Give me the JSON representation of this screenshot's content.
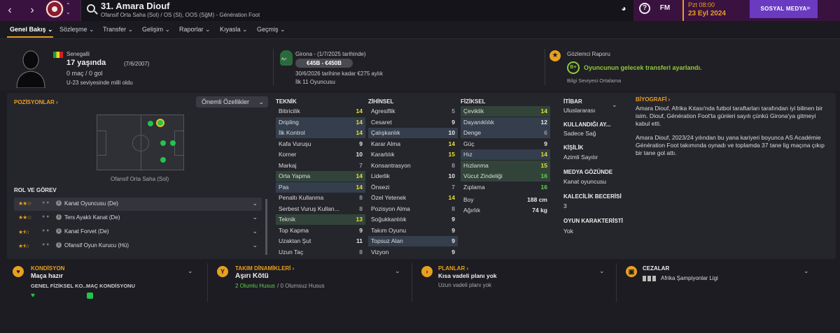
{
  "topbar": {
    "back": "‹",
    "forward": "›",
    "player_title": "31. Amara Diouf",
    "player_subtitle": "Ofansif Orta Saha (Sol) / OS (Sl), OOS (SğM) - Génération Foot",
    "fm_label": "FM",
    "date_day": "Pzt 08:00",
    "date": "23 Eyl 2024",
    "social_button": "SOSYAL MEDYA",
    "accent_color": "#e8a020",
    "social_color": "#6a3bc0"
  },
  "tabs": [
    {
      "label": "Genel Bakış ⌄"
    },
    {
      "label": "Sözleşme ⌄"
    },
    {
      "label": "Transfer ⌄"
    },
    {
      "label": "Gelişim ⌄"
    },
    {
      "label": "Raporlar ⌄"
    },
    {
      "label": "Kıyasla ⌄"
    },
    {
      "label": "Geçmiş ⌄"
    }
  ],
  "header": {
    "nationality": "Senegalli",
    "age": "17 yaşında",
    "dob": "(7/6/2007)",
    "caps": "0 maç / 0 gol",
    "intl_status": "U-23 seviyesinde milli oldu",
    "contract_club": "Girona - (1/7/2025 tarihinde)",
    "contract_badge": "Ayr",
    "value_range": "€45B - €450B",
    "wage": "30/6/2026 tarihine kadar €275 aylık",
    "squad_status": "İlk 11 Oyuncusu",
    "scout_title": "Gözlemci Raporu",
    "scout_grade": "B+",
    "scout_note": "Oyuncunun gelecek transferi ayarlandı.",
    "scout_level": "Bilgi Seviyesi Ortalama"
  },
  "positions": {
    "title": "POZİSYONLAR ›",
    "sort_label": "Önemli Özellikler",
    "pitch_caption": "Ofansif Orta Saha (Sol)"
  },
  "roles": {
    "title": "ROL VE GÖREV",
    "items": [
      {
        "label": "Kanat Oyuncusu (De)",
        "stars": "★★☆"
      },
      {
        "label": "Ters Ayaklı Kanat (De)",
        "stars": "★★☆"
      },
      {
        "label": "Kanat Forvet (De)",
        "stars": "★⯨☆"
      },
      {
        "label": "Ofansif Oyun Kurucu (Hü)",
        "stars": "★⯨☆"
      }
    ]
  },
  "technical": {
    "title": "TEKNİK",
    "items": [
      {
        "name": "Bitiricilik",
        "value": "14"
      },
      {
        "name": "Dripling",
        "value": "14"
      },
      {
        "name": "İlk Kontrol",
        "value": "14"
      },
      {
        "name": "Kafa Vuruşu",
        "value": "9"
      },
      {
        "name": "Korner",
        "value": "10"
      },
      {
        "name": "Markaj",
        "value": "7"
      },
      {
        "name": "Orta Yapma",
        "value": "14"
      },
      {
        "name": "Pas",
        "value": "14"
      },
      {
        "name": "Penaltı Kullanma",
        "value": "8"
      },
      {
        "name": "Serbest Vuruş Kullan...",
        "value": "8"
      },
      {
        "name": "Teknik",
        "value": "13"
      },
      {
        "name": "Top Kapma",
        "value": "9"
      },
      {
        "name": "Uzaktan Şut",
        "value": "11"
      },
      {
        "name": "Uzun Taç",
        "value": "8"
      }
    ]
  },
  "mental": {
    "title": "ZİHİNSEL",
    "items": [
      {
        "name": "Agresiflik",
        "value": "5"
      },
      {
        "name": "Cesaret",
        "value": "9"
      },
      {
        "name": "Çalışkanlık",
        "value": "10"
      },
      {
        "name": "Karar Alma",
        "value": "14"
      },
      {
        "name": "Kararlılık",
        "value": "15"
      },
      {
        "name": "Konsantrasyon",
        "value": "8"
      },
      {
        "name": "Liderlik",
        "value": "10"
      },
      {
        "name": "Önsezi",
        "value": "7"
      },
      {
        "name": "Özel Yetenek",
        "value": "14"
      },
      {
        "name": "Pozisyon Alma",
        "value": "8"
      },
      {
        "name": "Soğukkanlılık",
        "value": "9"
      },
      {
        "name": "Takım Oyunu",
        "value": "9"
      },
      {
        "name": "Topsuz Alan",
        "value": "9"
      },
      {
        "name": "Vizyon",
        "value": "9"
      }
    ]
  },
  "physical": {
    "title": "FİZİKSEL",
    "items": [
      {
        "name": "Çeviklik",
        "value": "14"
      },
      {
        "name": "Dayanıklılık",
        "value": "12"
      },
      {
        "name": "Denge",
        "value": "6"
      },
      {
        "name": "Güç",
        "value": "9"
      },
      {
        "name": "Hız",
        "value": "14"
      },
      {
        "name": "Hızlanma",
        "value": "15"
      },
      {
        "name": "Vücut Zindeliği",
        "value": "16"
      },
      {
        "name": "Zıplama",
        "value": "16"
      }
    ],
    "height_label": "Boy",
    "height": "188 cm",
    "weight_label": "Ağırlık",
    "weight": "74 kg"
  },
  "info": {
    "reputation_label": "İTİBAR",
    "reputation": "Uluslararası",
    "foot_label": "KULLANDIĞI AY...",
    "foot": "Sadece Sağ",
    "personality_label": "KİŞİLİK",
    "personality": "Azimli Sayılır",
    "media_label": "MEDYA GÖZÜNDE",
    "media": "Kanat oyuncusu",
    "gk_label": "KALECİLİK BECERİSİ",
    "gk": "3",
    "traits_label": "OYUN KARAKTERİSTİ",
    "traits": "Yok"
  },
  "bio": {
    "title": "BİYOGRAFİ ›",
    "p1": "Amara Diouf, Afrika Kıtası'nda futbol taraftarları tarafından iyi bilinen bir isim. Diouf, Génération Foot'ta günleri sayılı çünkü Girona'ya gitmeyi kabul etti.",
    "p2": "Amara Diouf, 2023/24 yılından bu yana kariyeri boyunca AS Académie Génération Foot takımında oynadı ve toplamda 37 tane lig maçına çıkıp bir tane gol attı."
  },
  "bottom": {
    "condition_title": "KONDİSYON",
    "condition_value": "Maça hazır",
    "fitness_label": "GENEL FİZİKSEL KO...",
    "match_label": "MAÇ KONDİSYONU",
    "dynamics_title": "TAKIM DİNAMİKLERİ ›",
    "dynamics_value": "Aşırı Kötü",
    "positives": "2 Olumlu Husus",
    "negatives": "0 Olumsuz Husus",
    "plans_title": "PLANLAR ›",
    "plan_short": "Kısa vadeli planı yok",
    "plan_long": "Uzun vadeli planı yok",
    "bans_title": "CEZALAR",
    "ban_comp": "Afrika Şampiyonlar Ligi"
  }
}
